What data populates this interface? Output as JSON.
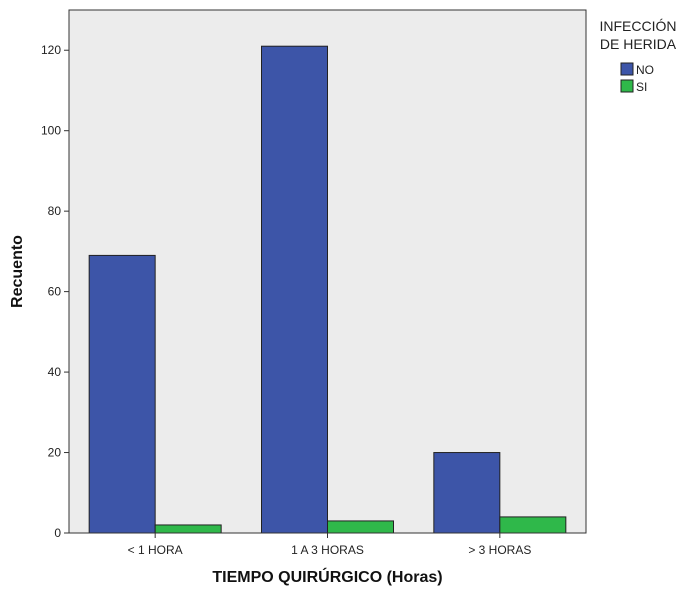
{
  "chart_data": {
    "type": "bar",
    "title": "",
    "xlabel": "TIEMPO QUIRÚRGICO (Horas)",
    "ylabel": "Recuento",
    "categories": [
      "< 1 HORA",
      "1 A 3 HORAS",
      "> 3 HORAS"
    ],
    "series": [
      {
        "name": "NO",
        "values": [
          69,
          121,
          20
        ],
        "color": "#3d55a8"
      },
      {
        "name": "SI",
        "values": [
          2,
          3,
          4
        ],
        "color": "#2fb84a"
      }
    ],
    "ylim": [
      0,
      130
    ],
    "yticks": [
      0,
      20,
      40,
      60,
      80,
      100,
      120
    ],
    "grid": false,
    "plot_background": "#ececec",
    "legend": {
      "title_lines": [
        "INFECCIÓN",
        "DE HERIDA"
      ],
      "placement": "top-right"
    }
  }
}
